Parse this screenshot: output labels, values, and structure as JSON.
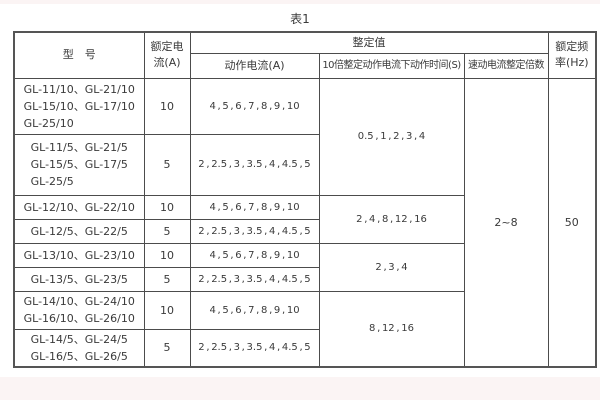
{
  "page": {
    "title": "表1"
  },
  "colors": {
    "page_background": "#fbf4f4",
    "content_background": "#ffffff",
    "border": "#4c4c4c",
    "text": "#3a3a3a"
  },
  "table": {
    "headers": {
      "model": "型　号",
      "rated_current": "额定电流(A)",
      "setting_value": "整定值",
      "action_current": "动作电流(A)",
      "action_time": "10倍整定动作电流下动作时间(S)",
      "quick_multiple": "速动电流整定倍数",
      "rated_frequency": "额定频率(Hz)"
    },
    "rows": [
      {
        "model_lines": [
          "GL-11/10、GL-21/10",
          "GL-15/10、GL-17/10",
          "GL-25/10"
        ],
        "rated_current": "10",
        "action_current": "4 , 5 , 6 , 7 , 8 , 9 , 10"
      },
      {
        "model_lines": [
          "GL-11/5、GL-21/5",
          "GL-15/5、GL-17/5",
          "GL-25/5"
        ],
        "rated_current": "5",
        "action_current": "2 , 2.5 , 3 , 3.5 , 4 , 4.5 , 5"
      },
      {
        "model_lines": [
          "GL-12/10、GL-22/10"
        ],
        "rated_current": "10",
        "action_current": "4 , 5 , 6 , 7 , 8 , 9 , 10"
      },
      {
        "model_lines": [
          "GL-12/5、GL-22/5"
        ],
        "rated_current": "5",
        "action_current": "2 , 2.5 , 3 , 3.5 , 4 , 4.5 , 5"
      },
      {
        "model_lines": [
          "GL-13/10、GL-23/10"
        ],
        "rated_current": "10",
        "action_current": "4 , 5 , 6 , 7 , 8 , 9 , 10"
      },
      {
        "model_lines": [
          "GL-13/5、GL-23/5"
        ],
        "rated_current": "5",
        "action_current": "2 , 2.5 , 3 , 3.5 , 4 , 4.5 , 5"
      },
      {
        "model_lines": [
          "GL-14/10、GL-24/10",
          "GL-16/10、GL-26/10"
        ],
        "rated_current": "10",
        "action_current": "4 , 5 , 6 , 7 , 8 , 9 , 10"
      },
      {
        "model_lines": [
          "GL-14/5、GL-24/5",
          "GL-16/5、GL-26/5"
        ],
        "rated_current": "5",
        "action_current": "2 , 2.5 , 3 , 3.5 , 4 , 4.5 , 5"
      }
    ],
    "time_groups": [
      "0.5 , 1 , 2 , 3 , 4",
      "2 , 4 , 8 , 12 , 16",
      "2 , 3 , 4",
      "8 , 12 , 16"
    ],
    "quick_multiple_value": "2~8",
    "rated_frequency_value": "50"
  }
}
